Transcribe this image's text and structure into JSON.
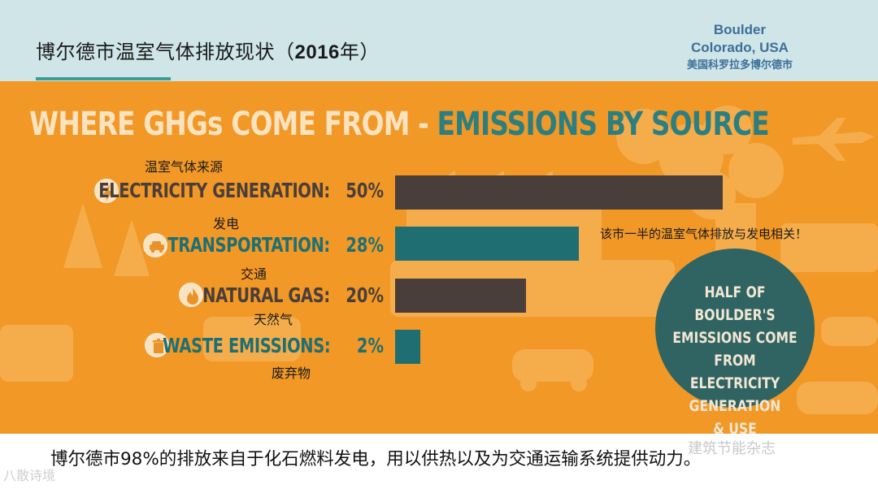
{
  "header": {
    "title_prefix": "博尔德市温室气体排放现状（",
    "title_year": "2016",
    "title_suffix": "年）",
    "location_en_line1": "Boulder",
    "location_en_line2": "Colorado, USA",
    "location_cn": "美国科罗拉多博尔德市"
  },
  "infographic": {
    "headline_part1": "WHERE GHGs COME FROM - ",
    "headline_part2": "EMISSIONS BY SOURCE",
    "source_cn": "温室气体来源",
    "note_cn": "该市一半的温室气体排放与发电相关！",
    "circle_lines": [
      "HALF OF BOULDER'S",
      "EMISSIONS COME",
      "FROM ELECTRICITY",
      "GENERATION",
      "& USE"
    ],
    "colors": {
      "panel": "#f19827",
      "brown": "#4a3e3a",
      "teal": "#1f6f72",
      "circle": "#2f6463"
    }
  },
  "chart_data": {
    "type": "bar",
    "title": "WHERE GHGs COME FROM - EMISSIONS BY SOURCE",
    "categories": [
      "ELECTRICITY GENERATION:",
      "TRANSPORTATION:",
      "NATURAL GAS:",
      "WASTE EMISSIONS:"
    ],
    "categories_cn": [
      "发电",
      "交通",
      "天然气",
      "废弃物"
    ],
    "values": [
      50,
      28,
      20,
      2
    ],
    "value_labels": [
      "50%",
      "28%",
      "20%",
      "2%"
    ],
    "bar_colors": [
      "#4a3e3a",
      "#1f6f72",
      "#4a3e3a",
      "#1f6f72"
    ],
    "icons": [
      "lightning-icon",
      "car-icon",
      "flame-icon",
      "trash-can-icon"
    ],
    "xlim": [
      0,
      50
    ],
    "orientation": "horizontal"
  },
  "caption": "博尔德市98%的排放来自于化石燃料发电，用以供热以及为交通运输系统提供动力。",
  "watermark_left": "八散诗境",
  "watermark_right": "建筑节能杂志"
}
